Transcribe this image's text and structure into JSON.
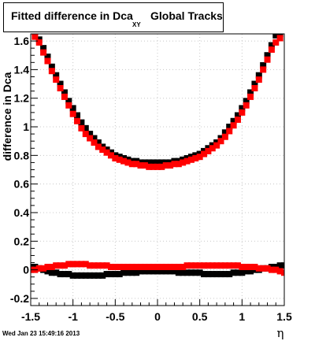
{
  "title": {
    "main": "Fitted difference in Dca",
    "subscript": "XY",
    "tail": "Global Tracks"
  },
  "footer_text": "Wed Jan 23 15:49:16 2013",
  "chart_data": {
    "type": "scatter",
    "xlabel": "η",
    "ylabel": "difference in Dca",
    "xlim": [
      -1.5,
      1.5
    ],
    "ylim": [
      -0.25,
      1.65
    ],
    "x_ticks": [
      -1.5,
      -1,
      -0.5,
      0,
      0.5,
      1,
      1.5
    ],
    "x_tick_labels": [
      "-1.5",
      "-1",
      "-0.5",
      "0",
      "0.5",
      "1",
      "1.5"
    ],
    "y_ticks": [
      -0.2,
      0,
      0.2,
      0.4,
      0.6,
      0.8,
      1,
      1.2,
      1.4,
      1.6
    ],
    "y_tick_labels": [
      "-0.2",
      "0",
      "0.2",
      "0.4",
      "0.6",
      "0.8",
      "1",
      "1.2",
      "1.4",
      "1.6"
    ],
    "grid": true,
    "colors": {
      "black_series": "#000000",
      "red_series": "#ff0000"
    },
    "series": [
      {
        "color": "black",
        "x": [
          -1.45,
          -1.4,
          -1.35,
          -1.3,
          -1.25,
          -1.2,
          -1.15,
          -1.1,
          -1.05,
          -1,
          -0.95,
          -0.9,
          -0.85,
          -0.8,
          -0.75,
          -0.7,
          -0.65,
          -0.6,
          -0.55,
          -0.5,
          -0.45,
          -0.4,
          -0.35,
          -0.3,
          -0.25,
          -0.2,
          -0.15,
          -0.1,
          -0.05,
          0,
          0.05,
          0.1,
          0.15,
          0.2,
          0.25,
          0.3,
          0.35,
          0.4,
          0.45,
          0.5,
          0.55,
          0.6,
          0.65,
          0.7,
          0.75,
          0.8,
          0.85,
          0.9,
          0.95,
          1,
          1.05,
          1.1,
          1.15,
          1.2,
          1.25,
          1.3,
          1.35,
          1.4,
          1.45
        ],
        "y": [
          1.66,
          1.61,
          1.55,
          1.49,
          1.42,
          1.36,
          1.3,
          1.24,
          1.18,
          1.13,
          1.08,
          1.03,
          0.99,
          0.95,
          0.92,
          0.89,
          0.86,
          0.84,
          0.82,
          0.8,
          0.79,
          0.78,
          0.77,
          0.76,
          0.76,
          0.75,
          0.75,
          0.75,
          0.75,
          0.75,
          0.75,
          0.75,
          0.75,
          0.76,
          0.76,
          0.77,
          0.78,
          0.79,
          0.8,
          0.81,
          0.83,
          0.85,
          0.87,
          0.89,
          0.92,
          0.96,
          1.0,
          1.04,
          1.08,
          1.13,
          1.18,
          1.24,
          1.3,
          1.36,
          1.43,
          1.5,
          1.57,
          1.64,
          1.65
        ]
      },
      {
        "color": "red",
        "x": [
          -1.45,
          -1.4,
          -1.35,
          -1.3,
          -1.25,
          -1.2,
          -1.15,
          -1.1,
          -1.05,
          -1,
          -0.95,
          -0.9,
          -0.85,
          -0.8,
          -0.75,
          -0.7,
          -0.65,
          -0.6,
          -0.55,
          -0.5,
          -0.45,
          -0.4,
          -0.35,
          -0.3,
          -0.25,
          -0.2,
          -0.15,
          -0.1,
          -0.05,
          0,
          0.05,
          0.1,
          0.15,
          0.2,
          0.25,
          0.3,
          0.35,
          0.4,
          0.45,
          0.5,
          0.55,
          0.6,
          0.65,
          0.7,
          0.75,
          0.8,
          0.85,
          0.9,
          0.95,
          1,
          1.05,
          1.1,
          1.15,
          1.2,
          1.25,
          1.3,
          1.35,
          1.4,
          1.45
        ],
        "y": [
          1.63,
          1.59,
          1.52,
          1.46,
          1.39,
          1.33,
          1.27,
          1.21,
          1.15,
          1.09,
          1.04,
          0.99,
          0.95,
          0.92,
          0.89,
          0.86,
          0.84,
          0.82,
          0.8,
          0.78,
          0.77,
          0.76,
          0.75,
          0.74,
          0.74,
          0.73,
          0.73,
          0.72,
          0.72,
          0.72,
          0.72,
          0.73,
          0.73,
          0.74,
          0.74,
          0.75,
          0.76,
          0.77,
          0.78,
          0.79,
          0.81,
          0.83,
          0.85,
          0.87,
          0.9,
          0.93,
          0.97,
          1.01,
          1.05,
          1.1,
          1.15,
          1.21,
          1.27,
          1.33,
          1.4,
          1.47,
          1.54,
          1.59,
          1.62
        ]
      },
      {
        "color": "black",
        "x": [
          -1.5,
          -1.45,
          -1.4,
          -1.35,
          -1.3,
          -1.25,
          -1.2,
          -1.15,
          -1.1,
          -1.05,
          -1,
          -0.95,
          -0.9,
          -0.85,
          -0.8,
          -0.75,
          -0.7,
          -0.65,
          -0.6,
          -0.55,
          -0.5,
          -0.45,
          -0.4,
          -0.35,
          -0.3,
          -0.25,
          -0.2,
          -0.15,
          -0.1,
          -0.05,
          0,
          0.05,
          0.1,
          0.15,
          0.2,
          0.25,
          0.3,
          0.35,
          0.4,
          0.45,
          0.5,
          0.55,
          0.6,
          0.65,
          0.7,
          0.75,
          0.8,
          0.85,
          0.9,
          0.95,
          1,
          1.05,
          1.1,
          1.15,
          1.2,
          1.25,
          1.3,
          1.35,
          1.4,
          1.45,
          1.5
        ],
        "y": [
          0.02,
          0.02,
          0.01,
          0.0,
          -0.01,
          -0.02,
          -0.02,
          -0.03,
          -0.03,
          -0.03,
          -0.04,
          -0.04,
          -0.04,
          -0.04,
          -0.04,
          -0.04,
          -0.04,
          -0.04,
          -0.03,
          -0.03,
          -0.03,
          -0.03,
          -0.02,
          -0.02,
          -0.02,
          -0.02,
          -0.01,
          -0.01,
          -0.01,
          -0.01,
          -0.01,
          -0.01,
          -0.01,
          -0.01,
          -0.01,
          -0.02,
          -0.02,
          -0.02,
          -0.02,
          -0.02,
          -0.02,
          -0.03,
          -0.03,
          -0.03,
          -0.03,
          -0.03,
          -0.03,
          -0.03,
          -0.02,
          -0.02,
          -0.02,
          -0.01,
          -0.01,
          0.0,
          0.0,
          0.01,
          0.01,
          0.02,
          0.02,
          0.03,
          0.03
        ]
      },
      {
        "color": "red",
        "x": [
          -1.5,
          -1.45,
          -1.4,
          -1.35,
          -1.3,
          -1.25,
          -1.2,
          -1.15,
          -1.1,
          -1.05,
          -1,
          -0.95,
          -0.9,
          -0.85,
          -0.8,
          -0.75,
          -0.7,
          -0.65,
          -0.6,
          -0.55,
          -0.5,
          -0.45,
          -0.4,
          -0.35,
          -0.3,
          -0.25,
          -0.2,
          -0.15,
          -0.1,
          -0.05,
          0,
          0.05,
          0.1,
          0.15,
          0.2,
          0.25,
          0.3,
          0.35,
          0.4,
          0.45,
          0.5,
          0.55,
          0.6,
          0.65,
          0.7,
          0.75,
          0.8,
          0.85,
          0.9,
          0.95,
          1,
          1.05,
          1.1,
          1.15,
          1.2,
          1.25,
          1.3,
          1.35,
          1.4,
          1.45,
          1.5
        ],
        "y": [
          0.0,
          0.0,
          0.01,
          0.01,
          0.02,
          0.02,
          0.03,
          0.03,
          0.03,
          0.04,
          0.04,
          0.04,
          0.04,
          0.04,
          0.03,
          0.03,
          0.03,
          0.03,
          0.03,
          0.02,
          0.02,
          0.02,
          0.02,
          0.02,
          0.02,
          0.02,
          0.02,
          0.02,
          0.02,
          0.02,
          0.02,
          0.02,
          0.02,
          0.02,
          0.02,
          0.02,
          0.02,
          0.03,
          0.03,
          0.03,
          0.03,
          0.03,
          0.03,
          0.03,
          0.03,
          0.03,
          0.03,
          0.03,
          0.03,
          0.03,
          0.02,
          0.02,
          0.02,
          0.02,
          0.01,
          0.01,
          0.01,
          0.0,
          0.0,
          -0.01,
          -0.02
        ]
      }
    ]
  }
}
